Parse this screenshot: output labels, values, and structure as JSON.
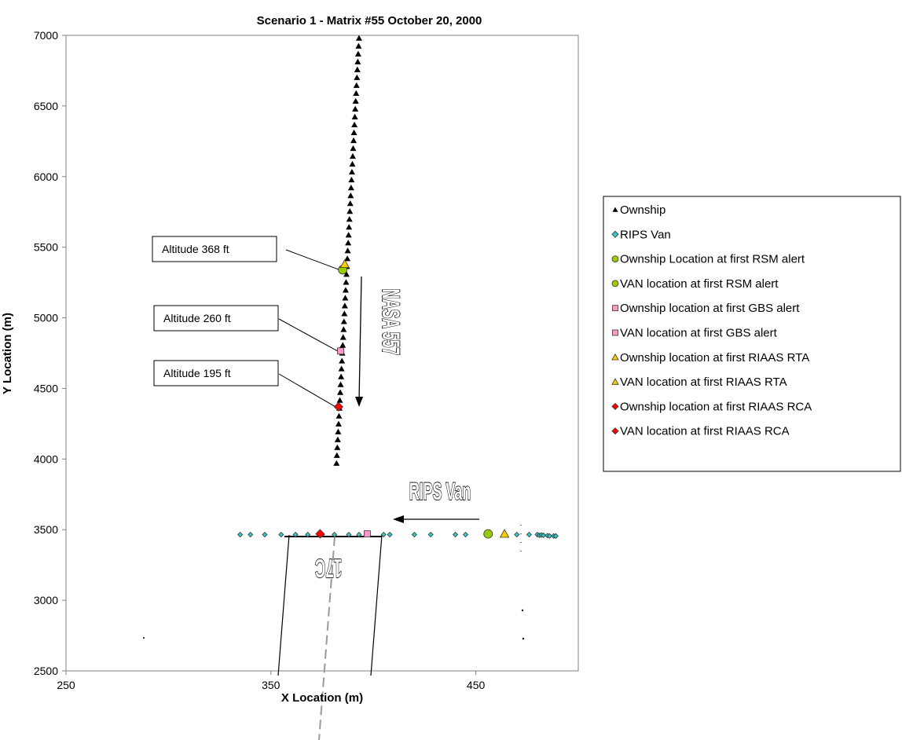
{
  "chart_data": {
    "type": "scatter",
    "title": "Scenario 1 - Matrix #55  October 20, 2000",
    "xlabel": "X Location (m)",
    "ylabel": "Y Location (m)",
    "xlim": [
      250,
      500
    ],
    "ylim": [
      2500,
      7000
    ],
    "xticks": [
      250,
      350,
      450
    ],
    "yticks": [
      2500,
      3000,
      3500,
      4000,
      4500,
      5000,
      5500,
      6000,
      6500,
      7000
    ],
    "grid": false,
    "legend_position": "right",
    "series": [
      {
        "name": "Ownship",
        "marker": "triangle",
        "color": "#000000",
        "track": {
          "x_start": 382,
          "y_start": 3970,
          "x_end": 393,
          "y_end": 6980,
          "count": 55
        }
      },
      {
        "name": "RIPS Van",
        "marker": "diamond",
        "color": "#33CCCC",
        "points": [
          [
            335,
            3465
          ],
          [
            340,
            3465
          ],
          [
            347,
            3465
          ],
          [
            355,
            3465
          ],
          [
            362,
            3465
          ],
          [
            368,
            3465
          ],
          [
            375,
            3465
          ],
          [
            381,
            3465
          ],
          [
            388,
            3465
          ],
          [
            393,
            3465
          ],
          [
            405,
            3465
          ],
          [
            408,
            3465
          ],
          [
            420,
            3465
          ],
          [
            428,
            3465
          ],
          [
            440,
            3465
          ],
          [
            445,
            3465
          ],
          [
            464,
            3465
          ],
          [
            470,
            3465
          ],
          [
            476,
            3465
          ],
          [
            480,
            3465
          ],
          [
            481,
            3460
          ],
          [
            482,
            3462
          ],
          [
            483,
            3460
          ],
          [
            485,
            3458
          ],
          [
            486,
            3455
          ],
          [
            488,
            3455
          ],
          [
            489,
            3455
          ]
        ]
      },
      {
        "name": "Ownship Location at first RSM alert",
        "marker": "circle",
        "color": "#99CC00",
        "points": [
          [
            385,
            5340
          ]
        ]
      },
      {
        "name": "VAN location at first RSM alert",
        "marker": "circle",
        "color": "#99CC00",
        "points": [
          [
            456,
            3470
          ]
        ]
      },
      {
        "name": "Ownship location at first GBS alert",
        "marker": "square",
        "color": "#FF99CC",
        "points": [
          [
            384,
            4765
          ]
        ]
      },
      {
        "name": "VAN location at first GBS alert",
        "marker": "square",
        "color": "#FF99CC",
        "points": [
          [
            397,
            3470
          ]
        ]
      },
      {
        "name": "Ownship location at first RIAAS RTA",
        "marker": "triangle",
        "color": "#FFCC00",
        "points": [
          [
            386,
            5380
          ]
        ]
      },
      {
        "name": "VAN location at first RIAAS RTA",
        "marker": "triangle",
        "color": "#FFCC00",
        "points": [
          [
            464,
            3470
          ]
        ]
      },
      {
        "name": "Ownship location at first RIAAS RCA",
        "marker": "diamond",
        "color": "#FF0000",
        "points": [
          [
            383,
            4370
          ]
        ]
      },
      {
        "name": "VAN location at first RIAAS RCA",
        "marker": "diamond",
        "color": "#FF0000",
        "points": [
          [
            374,
            3470
          ]
        ]
      }
    ],
    "annotations": [
      {
        "text": "Altitude 368 ft",
        "target": [
          385,
          5340
        ]
      },
      {
        "text": "Altitude 260 ft",
        "target": [
          384,
          4765
        ]
      },
      {
        "text": "Altitude 195 ft",
        "target": [
          383,
          4370
        ]
      }
    ],
    "overlay_labels": {
      "aircraft": "NASA 557",
      "van": "RIPS Van",
      "runway": "17C"
    }
  }
}
